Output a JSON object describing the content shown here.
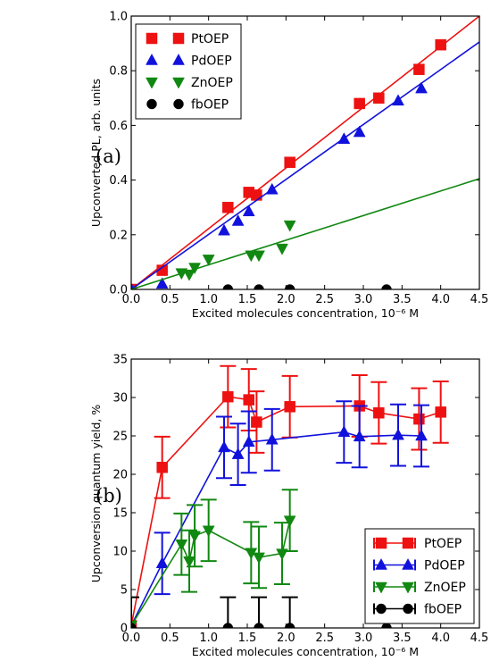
{
  "chart_data": [
    {
      "type": "scatter",
      "panel_label": "(a)",
      "xlabel": "Excited molecules concentration, 10⁻⁶ M",
      "ylabel": "Upconverted PL, arb. units",
      "xlim": [
        0.0,
        4.5
      ],
      "ylim": [
        0.0,
        1.0
      ],
      "xticks": [
        "0.0",
        "0.5",
        "1.0",
        "1.5",
        "2.0",
        "2.5",
        "3.0",
        "3.5",
        "4.0",
        "4.5"
      ],
      "yticks": [
        "0.0",
        "0.2",
        "0.4",
        "0.6",
        "0.8",
        "1.0"
      ],
      "legend_position": "top-left",
      "series": [
        {
          "name": "PtOEP",
          "color": "#ee1111",
          "marker": "square",
          "x": [
            0.0,
            0.4,
            1.25,
            1.52,
            1.62,
            2.05,
            2.95,
            3.2,
            3.72,
            4.0
          ],
          "y": [
            0.0,
            0.07,
            0.3,
            0.355,
            0.345,
            0.465,
            0.68,
            0.7,
            0.805,
            0.895
          ],
          "fit": [
            [
              0.0,
              0.0
            ],
            [
              4.5,
              1.0
            ]
          ]
        },
        {
          "name": "PdOEP",
          "color": "#1111dd",
          "marker": "triangle-up",
          "x": [
            0.0,
            0.4,
            1.2,
            1.38,
            1.52,
            1.82,
            2.75,
            2.95,
            3.45,
            3.75
          ],
          "y": [
            0.0,
            0.02,
            0.215,
            0.25,
            0.285,
            0.365,
            0.55,
            0.575,
            0.69,
            0.735
          ],
          "fit": [
            [
              0.0,
              0.0
            ],
            [
              4.5,
              0.905
            ]
          ]
        },
        {
          "name": "ZnOEP",
          "color": "#118811",
          "marker": "triangle-down",
          "x": [
            0.65,
            0.75,
            0.82,
            1.0,
            1.55,
            1.65,
            1.95,
            2.05
          ],
          "y": [
            0.06,
            0.055,
            0.08,
            0.11,
            0.125,
            0.125,
            0.15,
            0.235
          ],
          "fit": [
            [
              0.0,
              0.0
            ],
            [
              4.5,
              0.405
            ]
          ]
        },
        {
          "name": "fbOEP",
          "color": "#000000",
          "marker": "circle",
          "x": [
            1.25,
            1.65,
            2.05,
            3.3
          ],
          "y": [
            0.0,
            0.0,
            0.0,
            0.0
          ]
        }
      ]
    },
    {
      "type": "line",
      "panel_label": "(b)",
      "xlabel": "Excited molecules concentration, 10⁻⁶ M",
      "ylabel": "Upconversion quantum yield, %",
      "xlim": [
        0.0,
        4.5
      ],
      "ylim": [
        0,
        35
      ],
      "xticks": [
        "0.0",
        "0.5",
        "1.0",
        "1.5",
        "2.0",
        "2.5",
        "3.0",
        "3.5",
        "4.0",
        "4.5"
      ],
      "yticks": [
        "0",
        "5",
        "10",
        "15",
        "20",
        "25",
        "30",
        "35"
      ],
      "legend_position": "bottom-right",
      "series": [
        {
          "name": "PtOEP",
          "color": "#ee1111",
          "marker": "square",
          "connect": true,
          "x": [
            0.0,
            0.4,
            1.25,
            1.52,
            1.62,
            2.05,
            2.95,
            3.2,
            3.72,
            4.0
          ],
          "y": [
            0.3,
            20.9,
            30.1,
            29.7,
            26.8,
            28.8,
            28.9,
            28.0,
            27.2,
            28.1
          ],
          "err": [
            0,
            4.0,
            4.0,
            4.0,
            4.0,
            4.0,
            4.0,
            4.0,
            4.0,
            4.0
          ]
        },
        {
          "name": "PdOEP",
          "color": "#1111dd",
          "marker": "triangle-up",
          "connect": true,
          "x": [
            0.0,
            0.4,
            1.2,
            1.38,
            1.52,
            1.82,
            2.75,
            2.95,
            3.45,
            3.75
          ],
          "y": [
            0.3,
            8.4,
            23.5,
            22.6,
            24.2,
            24.5,
            25.5,
            24.9,
            25.1,
            25.0
          ],
          "err": [
            0,
            4.0,
            4.0,
            4.0,
            4.0,
            4.0,
            4.0,
            4.0,
            4.0,
            4.0
          ]
        },
        {
          "name": "ZnOEP",
          "color": "#118811",
          "marker": "triangle-down",
          "connect": true,
          "x": [
            0.0,
            0.65,
            0.75,
            0.82,
            1.0,
            1.55,
            1.65,
            1.95,
            2.05
          ],
          "y": [
            0.3,
            10.9,
            8.7,
            12.0,
            12.7,
            9.8,
            9.2,
            9.7,
            14.0
          ],
          "err": [
            0,
            4.0,
            4.0,
            4.0,
            4.0,
            4.0,
            4.0,
            4.0,
            4.0
          ]
        },
        {
          "name": "fbOEP",
          "color": "#000000",
          "marker": "circle",
          "connect": false,
          "x": [
            0.0,
            1.25,
            1.65,
            2.05,
            3.3
          ],
          "y": [
            0.0,
            0.0,
            0.0,
            0.0,
            0.0
          ],
          "err": [
            4.0,
            4.0,
            4.0,
            4.0,
            4.0
          ]
        }
      ]
    }
  ]
}
